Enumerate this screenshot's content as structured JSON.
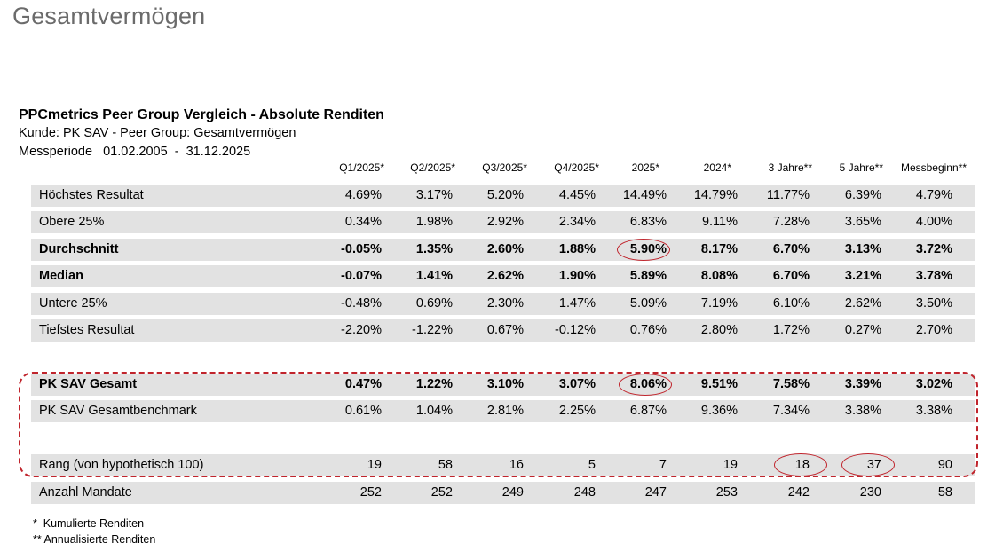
{
  "page_title": "Gesamtvermögen",
  "report": {
    "title": "PPCmetrics Peer Group Vergleich - Absolute Renditen",
    "subtitle": "Kunde: PK SAV - Peer Group: Gesamtvermögen",
    "period": "Messperiode   01.02.2005  -  31.12.2025"
  },
  "columns": [
    "Q1/2025*",
    "Q2/2025*",
    "Q3/2025*",
    "Q4/2025*",
    "2025*",
    "2024*",
    "3 Jahre**",
    "5 Jahre**",
    "Messbeginn**"
  ],
  "rows": [
    {
      "label": "Höchstes Resultat",
      "values": [
        "4.69%",
        "3.17%",
        "5.20%",
        "4.45%",
        "14.49%",
        "14.79%",
        "11.77%",
        "6.39%",
        "4.79%"
      ],
      "bold": false,
      "shaded": true
    },
    {
      "label": "Obere 25%",
      "values": [
        "0.34%",
        "1.98%",
        "2.92%",
        "2.34%",
        "6.83%",
        "9.11%",
        "7.28%",
        "3.65%",
        "4.00%"
      ],
      "bold": false,
      "shaded": true
    },
    {
      "label": "Durchschnitt",
      "values": [
        "-0.05%",
        "1.35%",
        "2.60%",
        "1.88%",
        "5.90%",
        "8.17%",
        "6.70%",
        "3.13%",
        "3.72%"
      ],
      "bold": true,
      "shaded": true
    },
    {
      "label": "Median",
      "values": [
        "-0.07%",
        "1.41%",
        "2.62%",
        "1.90%",
        "5.89%",
        "8.08%",
        "6.70%",
        "3.21%",
        "3.78%"
      ],
      "bold": true,
      "shaded": true
    },
    {
      "label": "Untere 25%",
      "values": [
        "-0.48%",
        "0.69%",
        "2.30%",
        "1.47%",
        "5.09%",
        "7.19%",
        "6.10%",
        "2.62%",
        "3.50%"
      ],
      "bold": false,
      "shaded": true
    },
    {
      "label": "Tiefstes Resultat",
      "values": [
        "-2.20%",
        "-1.22%",
        "0.67%",
        "-0.12%",
        "0.76%",
        "2.80%",
        "1.72%",
        "0.27%",
        "2.70%"
      ],
      "bold": false,
      "shaded": true
    },
    {
      "label": "PK SAV Gesamt",
      "values": [
        "0.47%",
        "1.22%",
        "3.10%",
        "3.07%",
        "8.06%",
        "9.51%",
        "7.58%",
        "3.39%",
        "3.02%"
      ],
      "bold": true,
      "shaded": true
    },
    {
      "label": "PK SAV Gesamtbenchmark",
      "values": [
        "0.61%",
        "1.04%",
        "2.81%",
        "2.25%",
        "6.87%",
        "9.36%",
        "7.34%",
        "3.38%",
        "3.38%"
      ],
      "bold": false,
      "shaded": true
    },
    {
      "label": "",
      "values": [
        "",
        "",
        "",
        "",
        "",
        "",
        "",
        "",
        ""
      ],
      "bold": false,
      "shaded": false
    },
    {
      "label": "Rang (von hypothetisch 100)",
      "values": [
        "19",
        "58",
        "16",
        "5",
        "7",
        "19",
        "18",
        "37",
        "90"
      ],
      "bold": false,
      "shaded": true
    },
    {
      "label": "Anzahl Mandate",
      "values": [
        "252",
        "252",
        "249",
        "248",
        "247",
        "253",
        "242",
        "230",
        "58"
      ],
      "bold": false,
      "shaded": true
    }
  ],
  "footnotes": [
    "*  Kumulierte Renditen",
    "** Annualisierte Renditen"
  ],
  "highlight_color": "#c0242c"
}
